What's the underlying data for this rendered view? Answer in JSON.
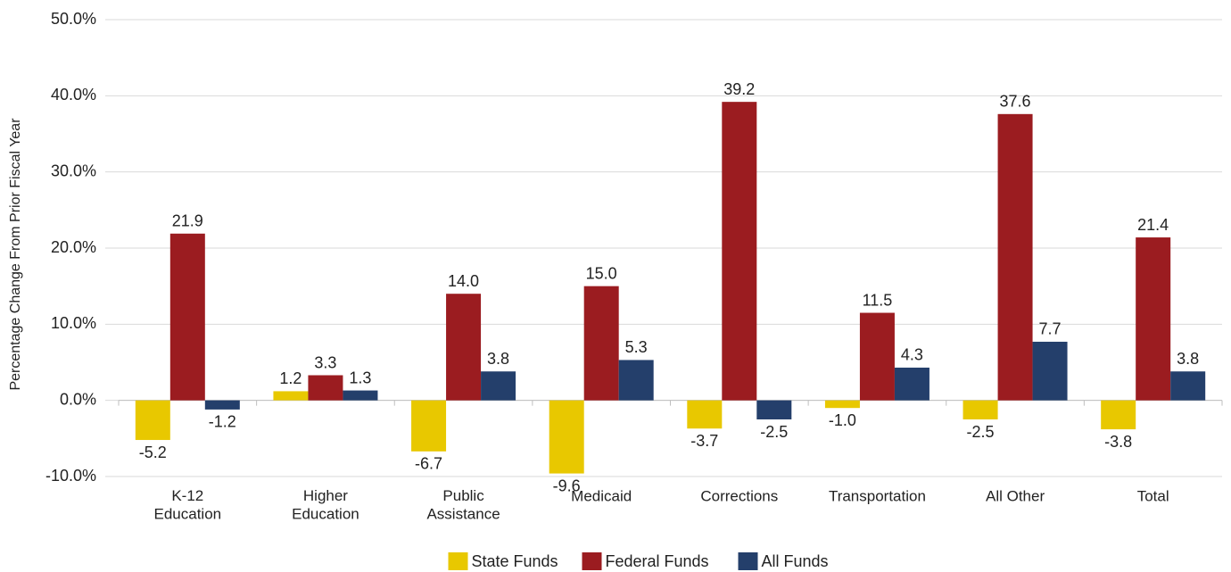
{
  "chart_data": {
    "type": "bar",
    "y_axis_label": "Percentage Change From Prior Fiscal Year",
    "categories": [
      "K-12\nEducation",
      "Higher\nEducation",
      "Public\nAssistance",
      "Medicaid",
      "Corrections",
      "Transportation",
      "All Other",
      "Total"
    ],
    "series": [
      {
        "name": "State Funds",
        "color": "#e8c800",
        "values": [
          -5.2,
          1.2,
          -6.7,
          -9.6,
          -3.7,
          -1.0,
          -2.5,
          -3.8
        ],
        "value_labels": [
          "-5.2",
          "1.2",
          "-6.7",
          "-9.6",
          "-3.7",
          "-1.0",
          "-2.5",
          "-3.8"
        ]
      },
      {
        "name": "Federal Funds",
        "color": "#9b1c20",
        "values": [
          21.9,
          3.3,
          14.0,
          15.0,
          39.2,
          11.5,
          37.6,
          21.4
        ],
        "value_labels": [
          "21.9",
          "3.3",
          "14.0",
          "15.0",
          "39.2",
          "11.5",
          "37.6",
          "21.4"
        ]
      },
      {
        "name": "All Funds",
        "color": "#243f6b",
        "values": [
          -1.2,
          1.3,
          3.8,
          5.3,
          -2.5,
          4.3,
          7.7,
          3.8
        ],
        "value_labels": [
          "-1.2",
          "1.3",
          "3.8",
          "5.3",
          "-2.5",
          "4.3",
          "7.7",
          "3.8"
        ]
      }
    ],
    "ylim": [
      -10,
      50
    ],
    "yticks": [
      {
        "value": -10,
        "label": "-10.0%"
      },
      {
        "value": 0,
        "label": "0.0%"
      },
      {
        "value": 10,
        "label": "10.0%"
      },
      {
        "value": 20,
        "label": "20.0%"
      },
      {
        "value": 30,
        "label": "30.0%"
      },
      {
        "value": 40,
        "label": "40.0%"
      },
      {
        "value": 50,
        "label": "50.0%"
      }
    ],
    "grid": true,
    "legend": "bottom"
  }
}
